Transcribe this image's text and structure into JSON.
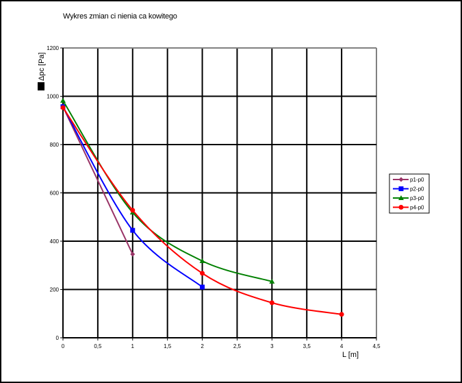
{
  "chart_data": {
    "type": "line",
    "title": "Wykres zmian ci  nienia ca kowitego",
    "xlabel": "L [m]",
    "ylabel": "Δpc [Pa]",
    "xlim": [
      0,
      4.5
    ],
    "ylim": [
      0,
      1200
    ],
    "x_ticks": [
      "0",
      "0,5",
      "1",
      "1,5",
      "2",
      "2,5",
      "3",
      "3,5",
      "4",
      "4,5"
    ],
    "y_ticks": [
      "0",
      "200",
      "400",
      "600",
      "800",
      "1000",
      "1200"
    ],
    "grid": true,
    "legend_position": "right",
    "series": [
      {
        "name": "p1-p0",
        "color": "#993366",
        "marker": "diamond",
        "x": [
          0,
          1
        ],
        "y": [
          957,
          346
        ]
      },
      {
        "name": "p2-p0",
        "color": "#0000ff",
        "marker": "square",
        "x": [
          0,
          1,
          2
        ],
        "y": [
          957,
          445,
          210
        ]
      },
      {
        "name": "p3-p0",
        "color": "#008000",
        "marker": "triangle",
        "x": [
          0,
          1,
          2,
          3
        ],
        "y": [
          982,
          519,
          318,
          233
        ]
      },
      {
        "name": "p4-p0",
        "color": "#ff0000",
        "marker": "circle",
        "x": [
          0,
          1,
          2,
          3,
          4
        ],
        "y": [
          953,
          528,
          267,
          145,
          97
        ]
      }
    ]
  },
  "legend": {
    "items": [
      "p1-p0",
      "p2-p0",
      "p3-p0",
      "p4-p0"
    ]
  }
}
